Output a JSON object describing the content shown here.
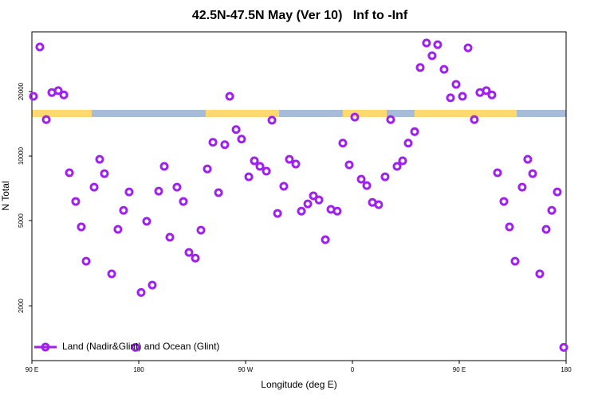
{
  "chart_data": {
    "type": "scatter",
    "title": "42.5N-47.5N May (Ver 10)   Inf to -Inf",
    "x_label": "Longitude (deg E)",
    "y_label": "N Total",
    "log_y": true,
    "grid": false,
    "legend_position": "bottom-left",
    "xlim": [
      90,
      540
    ],
    "ylim": [
      1110,
      38000
    ],
    "xticks": [
      {
        "value": 90,
        "label": "90 E"
      },
      180,
      {
        "value": 270,
        "label": "90 W"
      },
      {
        "value": 360,
        "label": "0"
      },
      {
        "value": 450,
        "label": "90 E"
      },
      {
        "value": 540,
        "label": "180"
      }
    ],
    "yticks": [
      2000,
      5000,
      10000,
      20000
    ],
    "series": [
      {
        "name": "Land (Nadir&Glint) and Ocean (Glint)",
        "color": "#a020f0",
        "x": [
          91.3,
          96.7,
          102.1,
          106.8,
          112.2,
          116.9,
          121.6,
          126.9,
          131.6,
          135.7,
          142.4,
          147.1,
          151.1,
          157.2,
          162.5,
          167.2,
          171.9,
          177.3,
          182.0,
          186.7,
          191.4,
          196.8,
          201.5,
          206.2,
          212.2,
          217.6,
          222.3,
          227.7,
          232.4,
          237.8,
          242.5,
          247.2,
          252.5,
          256.6,
          262.0,
          266.6,
          272.7,
          277.4,
          282.1,
          287.5,
          292.2,
          296.9,
          302.2,
          306.9,
          312.3,
          317.0,
          322.4,
          327.1,
          331.8,
          337.2,
          341.9,
          347.2,
          351.9,
          357.3,
          362.0,
          367.4,
          372.1,
          376.8,
          382.1,
          387.5,
          392.2,
          397.6,
          402.3,
          407.0,
          412.4,
          417.1,
          422.4,
          427.1,
          431.8,
          437.2,
          442.6,
          447.3,
          452.7,
          457.4,
          462.7,
          467.4,
          472.8,
          477.5,
          482.2,
          487.6,
          492.3,
          497.0,
          503.0,
          507.7,
          511.8,
          517.8,
          523.2,
          527.9,
          532.6,
          538.0
        ],
        "values": [
          19000,
          32300,
          14800,
          19800,
          20200,
          19300,
          8360,
          6140,
          4670,
          3230,
          7160,
          9660,
          8280,
          2820,
          4550,
          5580,
          6800,
          1280,
          2310,
          4960,
          2500,
          6860,
          8950,
          4180,
          7160,
          6140,
          3550,
          3340,
          4510,
          8710,
          11600,
          6750,
          11300,
          19000,
          13300,
          12000,
          8000,
          9500,
          8950,
          8500,
          14700,
          5400,
          7230,
          9660,
          9180,
          5530,
          5980,
          6520,
          6240,
          4070,
          5640,
          5530,
          11500,
          9100,
          15200,
          7800,
          7280,
          6080,
          5930,
          8000,
          14800,
          8950,
          9500,
          11500,
          13000,
          25900,
          33700,
          29400,
          33100,
          25400,
          18700,
          21600,
          19000,
          32000,
          14800,
          19800,
          20200,
          19300,
          8360,
          6140,
          4670,
          3230,
          7160,
          9660,
          8280,
          2820,
          4550,
          5580,
          6800,
          1280
        ]
      }
    ]
  }
}
